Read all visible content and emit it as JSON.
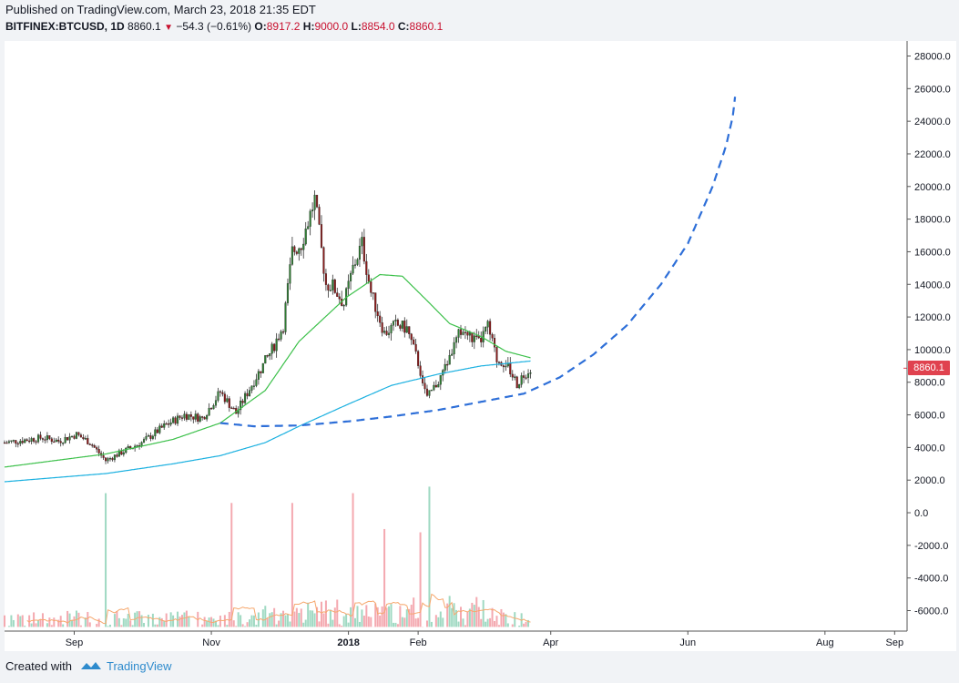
{
  "header": {
    "published": "Published on TradingView.com, March 23, 2018 21:35 EDT",
    "symbol": "BITFINEX:BTCUSD, 1D",
    "last": "8860.1",
    "change": "−54.3 (−0.61%)",
    "o_label": "O:",
    "o_value": "8917.2",
    "h_label": "H:",
    "h_value": "9000.0",
    "l_label": "L:",
    "l_value": "8854.0",
    "c_label": "C:",
    "c_value": "8860.1"
  },
  "footer": {
    "created_with": "Created with",
    "brand": "TradingView"
  },
  "price_tag": "8860.1",
  "colors": {
    "up": "#2e7d32",
    "down": "#8b1a1a",
    "ma_fast": "#3cc04a",
    "ma_slow": "#1ab0e0",
    "curve": "#2e6fd8",
    "vol_up": "#9fd9c2",
    "vol_down": "#f4a9b0",
    "vol_ma": "#f6a86e"
  },
  "chart_data": {
    "type": "candlestick",
    "title": "BITFINEX:BTCUSD, 1D",
    "y_axis": {
      "range": [
        -7000,
        29000
      ],
      "ticks": [
        "28000.0",
        "26000.0",
        "24000.0",
        "22000.0",
        "20000.0",
        "18000.0",
        "16000.0",
        "14000.0",
        "12000.0",
        "10000.0",
        "8000.0",
        "6000.0",
        "4000.0",
        "2000.0",
        "0.0",
        "-2000.0",
        "-4000.0",
        "-6000.0"
      ]
    },
    "x_axis": {
      "labels": [
        {
          "label": "Sep",
          "date": "2017-09-01",
          "bold": false
        },
        {
          "label": "Nov",
          "date": "2017-11-01",
          "bold": false
        },
        {
          "label": "2018",
          "date": "2018-01-01",
          "bold": true
        },
        {
          "label": "Feb",
          "date": "2018-02-01",
          "bold": false
        },
        {
          "label": "Apr",
          "date": "2018-04-01",
          "bold": false
        },
        {
          "label": "Jun",
          "date": "2018-06-01",
          "bold": false
        },
        {
          "label": "Aug",
          "date": "2018-08-01",
          "bold": false
        },
        {
          "label": "Sep",
          "date": "2018-09-01",
          "bold": false
        }
      ]
    },
    "price_path": [
      [
        "2017-08-01",
        4300
      ],
      [
        "2017-08-18",
        4600
      ],
      [
        "2017-08-25",
        4400
      ],
      [
        "2017-09-02",
        4800
      ],
      [
        "2017-09-08",
        4300
      ],
      [
        "2017-09-15",
        3200
      ],
      [
        "2017-09-22",
        3700
      ],
      [
        "2017-10-01",
        4300
      ],
      [
        "2017-10-12",
        5400
      ],
      [
        "2017-10-20",
        6000
      ],
      [
        "2017-10-28",
        5800
      ],
      [
        "2017-11-05",
        7400
      ],
      [
        "2017-11-12",
        6100
      ],
      [
        "2017-11-20",
        8100
      ],
      [
        "2017-11-28",
        10000
      ],
      [
        "2017-12-03",
        11500
      ],
      [
        "2017-12-07",
        16000
      ],
      [
        "2017-12-11",
        16500
      ],
      [
        "2017-12-17",
        19200
      ],
      [
        "2017-12-22",
        14000
      ],
      [
        "2017-12-25",
        13900
      ],
      [
        "2017-12-30",
        12800
      ],
      [
        "2018-01-03",
        15000
      ],
      [
        "2018-01-07",
        16500
      ],
      [
        "2018-01-11",
        13500
      ],
      [
        "2018-01-17",
        11000
      ],
      [
        "2018-01-22",
        11500
      ],
      [
        "2018-01-27",
        11300
      ],
      [
        "2018-02-01",
        9200
      ],
      [
        "2018-02-05",
        7000
      ],
      [
        "2018-02-11",
        8300
      ],
      [
        "2018-02-20",
        11200
      ],
      [
        "2018-02-28",
        10400
      ],
      [
        "2018-03-04",
        11400
      ],
      [
        "2018-03-08",
        9400
      ],
      [
        "2018-03-12",
        9200
      ],
      [
        "2018-03-17",
        7900
      ],
      [
        "2018-03-20",
        8500
      ],
      [
        "2018-03-23",
        8860
      ]
    ],
    "ma_fast": [
      [
        "2017-08-01",
        2800
      ],
      [
        "2017-09-15",
        3600
      ],
      [
        "2017-10-15",
        4500
      ],
      [
        "2017-11-05",
        5500
      ],
      [
        "2017-11-25",
        7500
      ],
      [
        "2017-12-10",
        10500
      ],
      [
        "2017-12-31",
        13200
      ],
      [
        "2018-01-15",
        14600
      ],
      [
        "2018-01-25",
        14500
      ],
      [
        "2018-02-05",
        13000
      ],
      [
        "2018-02-15",
        11600
      ],
      [
        "2018-03-01",
        10800
      ],
      [
        "2018-03-12",
        9900
      ],
      [
        "2018-03-23",
        9500
      ]
    ],
    "ma_slow": [
      [
        "2017-08-01",
        1900
      ],
      [
        "2017-09-15",
        2400
      ],
      [
        "2017-10-15",
        3000
      ],
      [
        "2017-11-05",
        3500
      ],
      [
        "2017-11-25",
        4300
      ],
      [
        "2017-12-10",
        5300
      ],
      [
        "2017-12-31",
        6600
      ],
      [
        "2018-01-20",
        7800
      ],
      [
        "2018-02-10",
        8500
      ],
      [
        "2018-03-01",
        9000
      ],
      [
        "2018-03-23",
        9300
      ]
    ],
    "projection_curve": [
      [
        "2017-11-05",
        5500
      ],
      [
        "2017-11-20",
        5300
      ],
      [
        "2017-12-10",
        5350
      ],
      [
        "2018-01-01",
        5600
      ],
      [
        "2018-01-20",
        5900
      ],
      [
        "2018-02-10",
        6300
      ],
      [
        "2018-03-01",
        6800
      ],
      [
        "2018-03-20",
        7300
      ],
      [
        "2018-04-05",
        8300
      ],
      [
        "2018-04-20",
        9700
      ],
      [
        "2018-05-05",
        11500
      ],
      [
        "2018-05-20",
        14000
      ],
      [
        "2018-06-01",
        16500
      ],
      [
        "2018-06-12",
        20000
      ],
      [
        "2018-06-18",
        22500
      ],
      [
        "2018-06-21",
        24300
      ],
      [
        "2018-06-22",
        25500
      ]
    ],
    "volume": {
      "base": -7000,
      "spikes": [
        [
          "2017-09-15",
          1200,
          "up"
        ],
        [
          "2017-11-10",
          600,
          "down"
        ],
        [
          "2017-12-07",
          600,
          "down"
        ],
        [
          "2018-01-03",
          1200,
          "down"
        ],
        [
          "2018-01-17",
          -1000,
          "down"
        ],
        [
          "2018-02-06",
          1600,
          "up"
        ],
        [
          "2018-02-02",
          -1200,
          "down"
        ]
      ],
      "typical_high": -4500
    },
    "last_price": 8860.1
  }
}
